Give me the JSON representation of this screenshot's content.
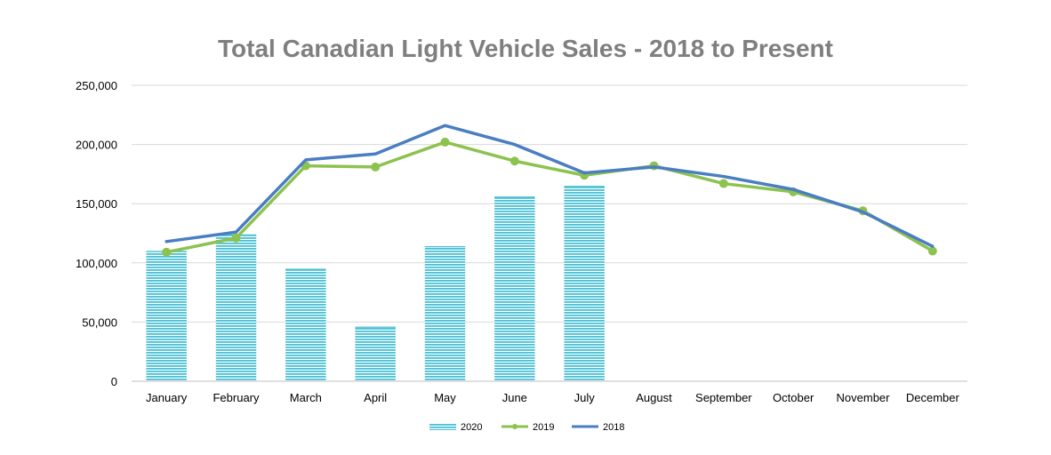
{
  "chart_data": {
    "type": "bar",
    "title": "Total Canadian Light Vehicle Sales - 2018 to Present",
    "xlabel": "",
    "ylabel": "",
    "categories": [
      "January",
      "February",
      "March",
      "April",
      "May",
      "June",
      "July",
      "August",
      "September",
      "October",
      "November",
      "December"
    ],
    "ylim": [
      0,
      250000
    ],
    "yticks": [
      0,
      50000,
      100000,
      150000,
      200000,
      250000
    ],
    "ytick_labels": [
      "0",
      "50,000",
      "100,000",
      "150,000",
      "200,000",
      "250,000"
    ],
    "grid": true,
    "legend_position": "bottom",
    "series": [
      {
        "name": "2020",
        "kind": "bar",
        "color": "#4bc0d3",
        "pattern": "horizontal-stripes",
        "values": [
          110000,
          124000,
          95000,
          46000,
          114000,
          156000,
          165000,
          null,
          null,
          null,
          null,
          null
        ]
      },
      {
        "name": "2019",
        "kind": "line-markers",
        "color": "#8dc24f",
        "values": [
          109000,
          121000,
          182000,
          181000,
          202000,
          186000,
          174000,
          182000,
          167000,
          160000,
          144000,
          110000
        ]
      },
      {
        "name": "2018",
        "kind": "line",
        "color": "#4a7ec2",
        "values": [
          118000,
          126000,
          187000,
          192000,
          216000,
          200000,
          176000,
          181000,
          173000,
          162000,
          143000,
          114000
        ]
      }
    ]
  }
}
